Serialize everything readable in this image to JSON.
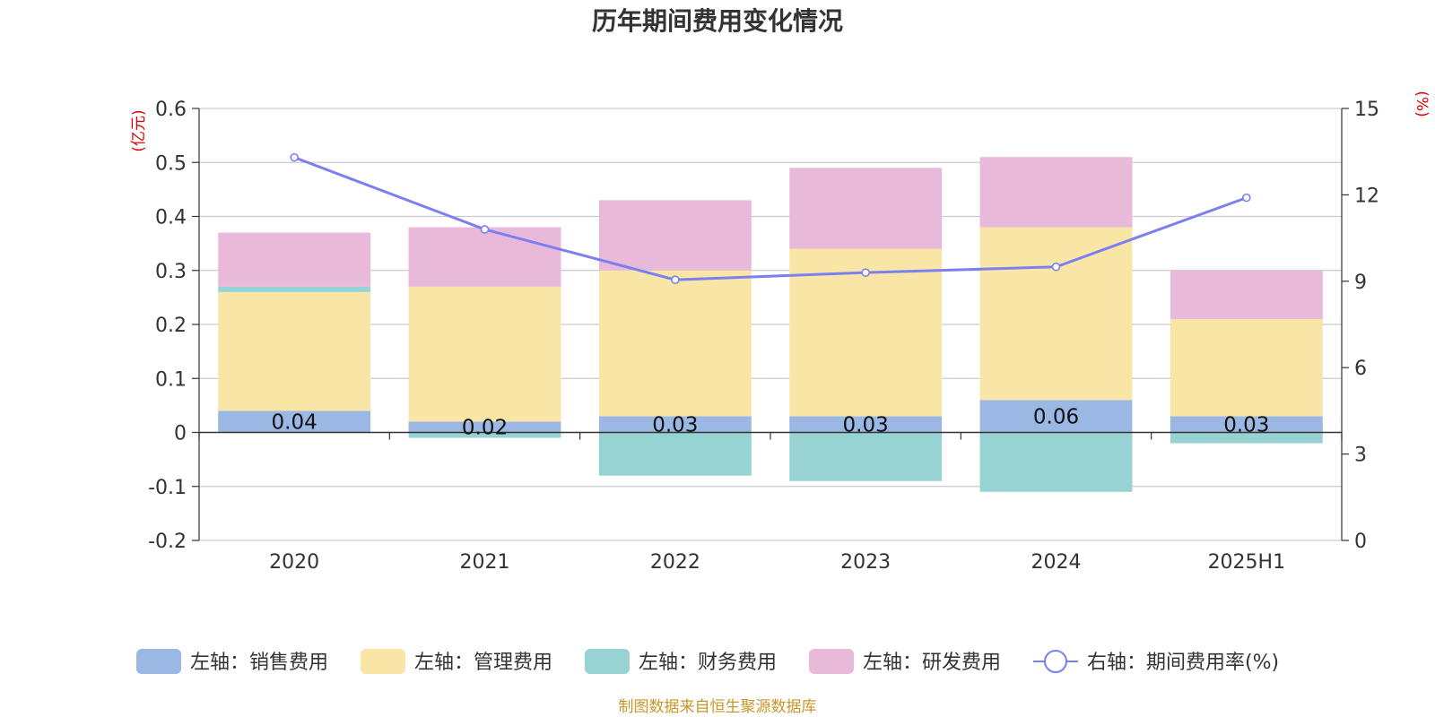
{
  "colors": {
    "sales": "#9bb7e3",
    "admin": "#f9e6a6",
    "finance": "#97d3d3",
    "rnd": "#e8b9d8",
    "rate": "#7b7ff0",
    "grid": "#cccccc",
    "axis": "#333333",
    "unit": "#e00000",
    "source": "#c8962a"
  },
  "chart_data": {
    "type": "bar",
    "stacked": true,
    "title": "历年期间费用变化情况",
    "categories": [
      "2020",
      "2021",
      "2022",
      "2023",
      "2024",
      "2025H1"
    ],
    "y_left": {
      "unit_label": "(亿元)",
      "ylim": [
        -0.2,
        0.6
      ],
      "ticks": [
        "0.6",
        "0.5",
        "0.4",
        "0.3",
        "0.2",
        "0.1",
        "0",
        "-0.1",
        "-0.2"
      ]
    },
    "y_right": {
      "unit_label": "(%)",
      "ylim": [
        0,
        15
      ],
      "ticks": [
        "15",
        "12",
        "9",
        "6",
        "3",
        "0"
      ]
    },
    "grid": true,
    "legend_position": "bottom",
    "series": [
      {
        "key": "sales",
        "name": "左轴：销售费用",
        "type": "bar",
        "axis": "left",
        "values": [
          0.04,
          0.02,
          0.03,
          0.03,
          0.06,
          0.03
        ],
        "labels": [
          "0.04",
          "0.02",
          "0.03",
          "0.03",
          "0.06",
          "0.03"
        ]
      },
      {
        "key": "admin",
        "name": "左轴：管理费用",
        "type": "bar",
        "axis": "left",
        "values": [
          0.22,
          0.25,
          0.27,
          0.31,
          0.32,
          0.18
        ]
      },
      {
        "key": "finance",
        "name": "左轴：财务费用",
        "type": "bar",
        "axis": "left",
        "values": [
          0.01,
          -0.01,
          -0.08,
          -0.09,
          -0.11,
          -0.02
        ]
      },
      {
        "key": "rnd",
        "name": "左轴：研发费用",
        "type": "bar",
        "axis": "left",
        "values": [
          0.1,
          0.11,
          0.13,
          0.15,
          0.13,
          0.09
        ]
      },
      {
        "key": "rate",
        "name": "右轴：期间费用率(%)",
        "type": "line",
        "axis": "right",
        "values": [
          13.3,
          10.8,
          9.05,
          9.3,
          9.5,
          11.9
        ]
      }
    ]
  },
  "source_note": "制图数据来自恒生聚源数据库"
}
